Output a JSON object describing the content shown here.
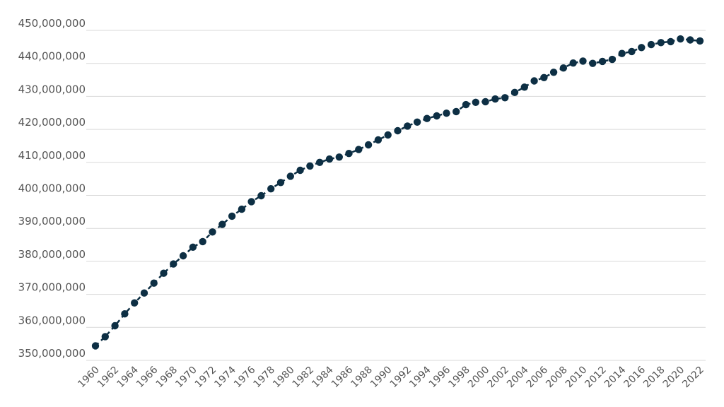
{
  "chart_data": {
    "type": "line",
    "title": "",
    "xlabel": "",
    "ylabel": "",
    "x": [
      1960,
      1961,
      1962,
      1963,
      1964,
      1965,
      1966,
      1967,
      1968,
      1969,
      1970,
      1971,
      1972,
      1973,
      1974,
      1975,
      1976,
      1977,
      1978,
      1979,
      1980,
      1981,
      1982,
      1983,
      1984,
      1985,
      1986,
      1987,
      1988,
      1989,
      1990,
      1991,
      1992,
      1993,
      1994,
      1995,
      1996,
      1997,
      1998,
      1999,
      2000,
      2001,
      2002,
      2003,
      2004,
      2005,
      2006,
      2007,
      2008,
      2009,
      2010,
      2011,
      2012,
      2013,
      2014,
      2015,
      2016,
      2017,
      2018,
      2019,
      2020,
      2021,
      2022
    ],
    "series": [
      {
        "values": [
          354400000,
          357200000,
          360500000,
          364100000,
          367400000,
          370400000,
          373400000,
          376400000,
          379200000,
          381700000,
          384300000,
          386000000,
          388900000,
          391200000,
          393700000,
          395800000,
          398100000,
          399900000,
          402000000,
          403900000,
          405800000,
          407600000,
          408900000,
          410000000,
          411000000,
          411600000,
          412700000,
          413900000,
          415300000,
          416800000,
          418300000,
          419600000,
          421000000,
          422200000,
          423300000,
          424100000,
          424900000,
          425400000,
          427500000,
          428200000,
          428400000,
          429200000,
          429600000,
          431200000,
          432800000,
          434700000,
          435700000,
          437300000,
          438600000,
          440100000,
          440700000,
          440000000,
          440600000,
          441200000,
          443000000,
          443600000,
          444800000,
          445700000,
          446300000,
          446600000,
          447400000,
          447100000,
          446800000
        ],
        "color": "#0d2f44"
      }
    ],
    "yticks": [
      "350,000,000",
      "360,000,000",
      "370,000,000",
      "380,000,000",
      "390,000,000",
      "400,000,000",
      "410,000,000",
      "420,000,000",
      "430,000,000",
      "440,000,000",
      "450,000,000"
    ],
    "xticks": [
      "1960",
      "1962",
      "1964",
      "1966",
      "1968",
      "1970",
      "1972",
      "1974",
      "1976",
      "1978",
      "1980",
      "1982",
      "1984",
      "1986",
      "1988",
      "1990",
      "1992",
      "1994",
      "1996",
      "1998",
      "2000",
      "2002",
      "2004",
      "2006",
      "2008",
      "2010",
      "2012",
      "2014",
      "2016",
      "2018",
      "2020",
      "2022"
    ],
    "ylim": [
      350000000,
      450000000
    ],
    "xlim": [
      1960,
      2022
    ],
    "grid": true,
    "legend": "none"
  }
}
